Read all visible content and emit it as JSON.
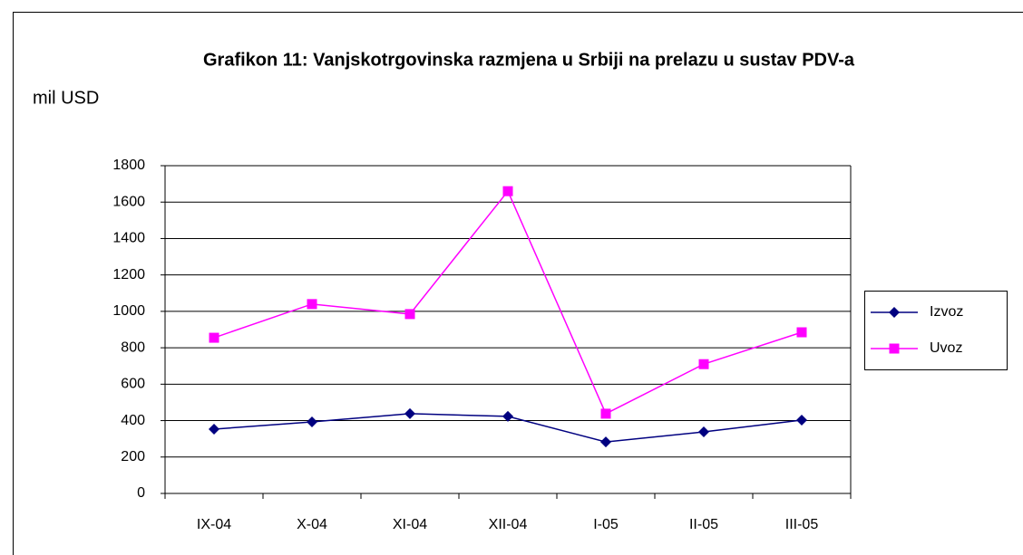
{
  "chart_data": {
    "type": "line",
    "title": "Grafikon 11: Vanjskotrgovinska razmjena u Srbiji na prelazu u sustav PDV-a",
    "y_label": "mil USD",
    "categories": [
      "IX-04",
      "X-04",
      "XI-04",
      "XII-04",
      "I-05",
      "II-05",
      "III-05"
    ],
    "series": [
      {
        "name": "Izvoz",
        "color": "#000080",
        "marker": "diamond",
        "values": [
          353,
          393,
          438,
          423,
          283,
          338,
          403
        ]
      },
      {
        "name": "Uvoz",
        "color": "#ff00ff",
        "marker": "square",
        "values": [
          855,
          1040,
          985,
          1660,
          438,
          710,
          885
        ]
      }
    ],
    "ylim": [
      0,
      1800
    ],
    "yticks": [
      0,
      200,
      400,
      600,
      800,
      1000,
      1200,
      1400,
      1600,
      1800
    ],
    "grid": true,
    "legend": "right"
  }
}
